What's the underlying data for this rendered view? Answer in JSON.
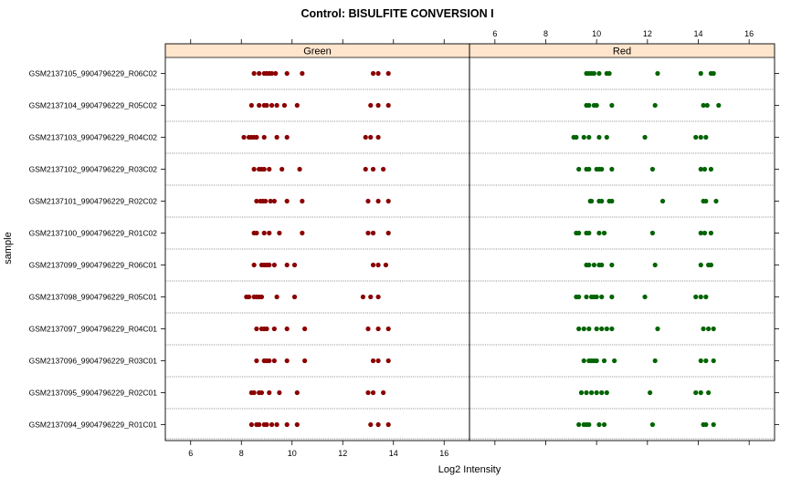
{
  "chart_data": {
    "type": "scatter",
    "title": "Control: BISULFITE CONVERSION I",
    "xlabel": "Log2 Intensity",
    "ylabel": "sample",
    "xlim": [
      5,
      17
    ],
    "x_ticks": [
      6,
      8,
      10,
      12,
      14,
      16
    ],
    "grid": false,
    "colors": {
      "strip_fill": "#ffe5cc",
      "frame": "#000000",
      "row_line": "#999999",
      "green_panel_points": "#8b0000",
      "red_panel_points": "#006400"
    },
    "samples": [
      "GSM2137105_9904796229_R06C02",
      "GSM2137104_9904796229_R05C02",
      "GSM2137103_9904796229_R04C02",
      "GSM2137102_9904796229_R03C02",
      "GSM2137101_9904796229_R02C02",
      "GSM2137100_9904796229_R01C02",
      "GSM2137099_9904796229_R06C01",
      "GSM2137098_9904796229_R05C01",
      "GSM2137097_9904796229_R04C01",
      "GSM2137096_9904796229_R03C01",
      "GSM2137095_9904796229_R02C01",
      "GSM2137094_9904796229_R01C01"
    ],
    "panels": [
      {
        "name": "Green",
        "values": [
          [
            8.5,
            8.7,
            8.9,
            9.0,
            9.1,
            9.2,
            9.35,
            9.8,
            10.4,
            13.2,
            13.4,
            13.8
          ],
          [
            8.4,
            8.7,
            8.9,
            9.0,
            9.2,
            9.4,
            9.7,
            10.2,
            13.1,
            13.4,
            13.8
          ],
          [
            8.1,
            8.3,
            8.4,
            8.5,
            8.6,
            8.9,
            9.4,
            9.8,
            12.9,
            13.1,
            13.4
          ],
          [
            8.5,
            8.7,
            8.8,
            8.9,
            9.1,
            9.6,
            10.3,
            12.9,
            13.2,
            13.6
          ],
          [
            8.6,
            8.75,
            8.85,
            8.95,
            9.15,
            9.3,
            9.8,
            10.4,
            13.0,
            13.4,
            13.8
          ],
          [
            8.5,
            8.6,
            8.9,
            9.1,
            9.5,
            10.4,
            13.0,
            13.2,
            13.8
          ],
          [
            8.5,
            8.8,
            8.9,
            9.0,
            9.1,
            9.3,
            9.8,
            10.1,
            13.2,
            13.4,
            13.7
          ],
          [
            8.2,
            8.3,
            8.5,
            8.6,
            8.7,
            8.8,
            9.4,
            10.1,
            12.8,
            13.1,
            13.4
          ],
          [
            8.6,
            8.8,
            8.9,
            9.0,
            9.3,
            9.8,
            10.5,
            13.0,
            13.4,
            13.8
          ],
          [
            8.6,
            8.9,
            9.0,
            9.1,
            9.3,
            9.8,
            10.5,
            13.2,
            13.4,
            13.8
          ],
          [
            8.4,
            8.5,
            8.7,
            8.8,
            9.1,
            9.5,
            10.2,
            13.0,
            13.2,
            13.6
          ],
          [
            8.4,
            8.6,
            8.7,
            8.9,
            9.0,
            9.2,
            9.4,
            9.8,
            10.2,
            13.1,
            13.4,
            13.8
          ]
        ]
      },
      {
        "name": "Red",
        "values": [
          [
            9.6,
            9.7,
            9.8,
            9.9,
            10.1,
            10.4,
            10.5,
            12.4,
            14.1,
            14.5,
            14.6
          ],
          [
            9.6,
            9.7,
            9.9,
            10.0,
            10.6,
            12.3,
            14.2,
            14.35,
            14.8
          ],
          [
            9.1,
            9.2,
            9.5,
            9.7,
            10.1,
            10.4,
            11.9,
            13.9,
            14.1,
            14.3
          ],
          [
            9.3,
            9.6,
            9.7,
            10.0,
            10.1,
            10.2,
            10.6,
            12.2,
            14.1,
            14.25,
            14.5
          ],
          [
            9.75,
            9.8,
            10.1,
            10.2,
            10.5,
            10.6,
            12.6,
            14.2,
            14.3,
            14.7
          ],
          [
            9.2,
            9.3,
            9.6,
            9.7,
            10.1,
            10.3,
            12.2,
            14.1,
            14.25,
            14.5
          ],
          [
            9.6,
            9.7,
            9.9,
            10.1,
            10.2,
            10.6,
            12.3,
            14.1,
            14.4,
            14.5
          ],
          [
            9.2,
            9.3,
            9.6,
            9.8,
            9.9,
            10.0,
            10.2,
            10.6,
            11.9,
            13.9,
            14.1,
            14.3
          ],
          [
            9.3,
            9.5,
            9.7,
            10.0,
            10.2,
            10.4,
            10.6,
            12.4,
            14.2,
            14.4,
            14.6
          ],
          [
            9.5,
            9.7,
            9.8,
            9.9,
            10.0,
            10.3,
            10.7,
            12.3,
            14.1,
            14.3,
            14.6
          ],
          [
            9.4,
            9.6,
            9.8,
            10.0,
            10.2,
            10.4,
            12.1,
            13.9,
            14.1,
            14.4
          ],
          [
            9.3,
            9.5,
            9.6,
            9.7,
            10.1,
            10.3,
            12.2,
            14.2,
            14.3,
            14.6
          ]
        ]
      }
    ]
  }
}
